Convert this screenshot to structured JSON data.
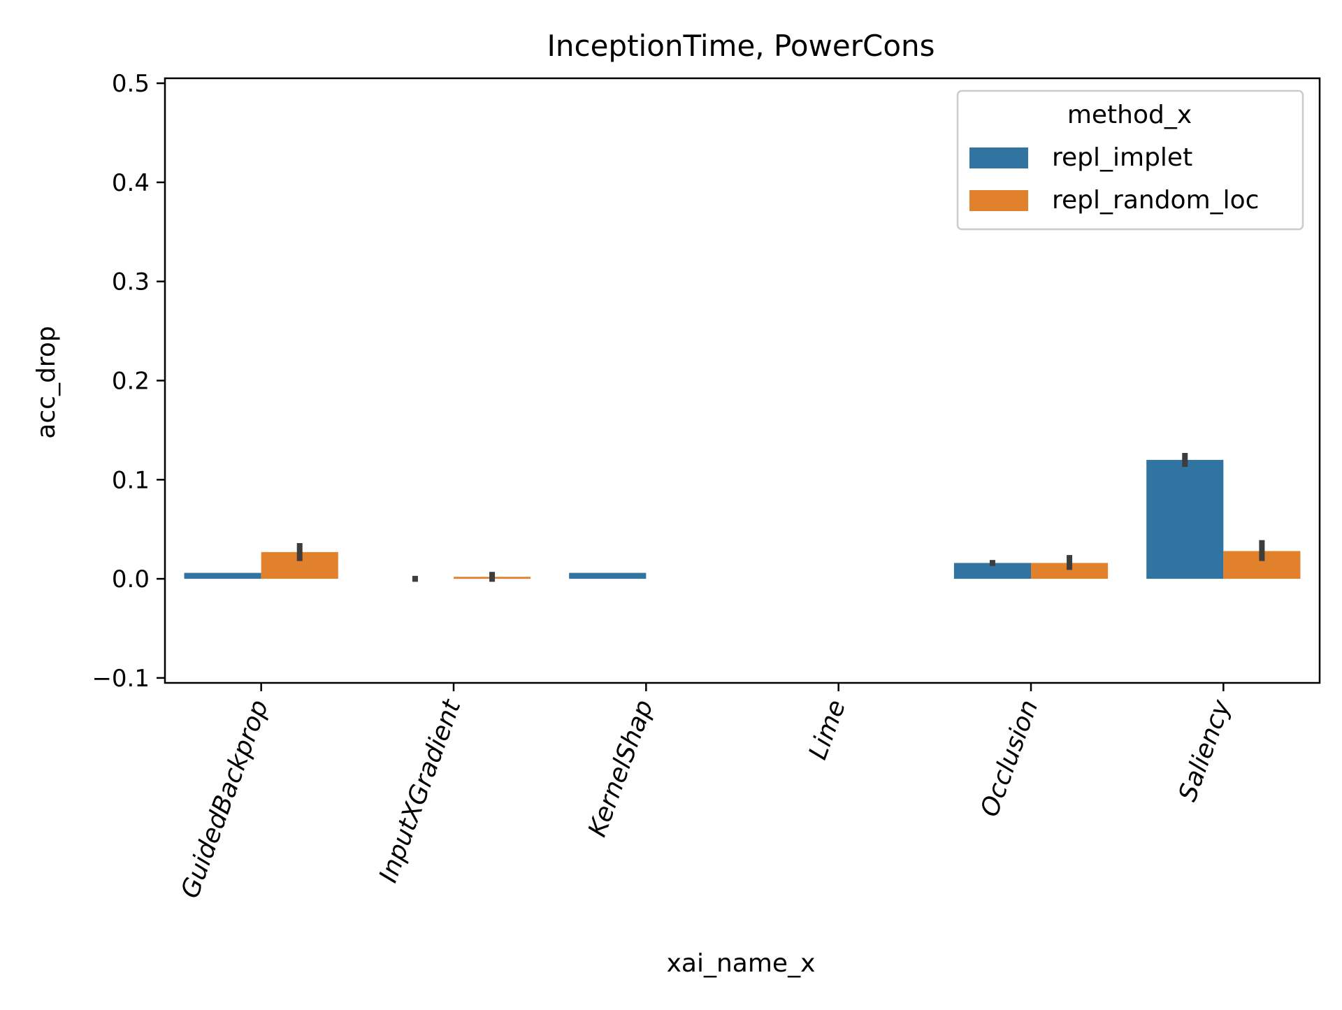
{
  "chart_data": {
    "type": "bar",
    "title": "InceptionTime, PowerCons",
    "xlabel": "xai_name_x",
    "ylabel": "acc_drop",
    "categories": [
      "GuidedBackprop",
      "InputXGradient",
      "KernelShap",
      "Lime",
      "Occlusion",
      "Saliency"
    ],
    "series": [
      {
        "name": "repl_implet",
        "color": "#3274a1",
        "values": [
          0.006,
          0.0,
          0.006,
          0.0,
          0.016,
          0.12
        ],
        "ci": [
          [
            0.006,
            0.006
          ],
          [
            -0.003,
            0.003
          ],
          [
            0.006,
            0.006
          ],
          [
            0.0,
            0.0
          ],
          [
            0.013,
            0.019
          ],
          [
            0.113,
            0.127
          ]
        ]
      },
      {
        "name": "repl_random_loc",
        "color": "#e1812c",
        "values": [
          0.027,
          0.002,
          0.0,
          0.0,
          0.016,
          0.028
        ],
        "ci": [
          [
            0.018,
            0.036
          ],
          [
            -0.003,
            0.007
          ],
          [
            0.0,
            0.0
          ],
          [
            0.0,
            0.0
          ],
          [
            0.009,
            0.024
          ],
          [
            0.018,
            0.039
          ]
        ]
      }
    ],
    "yticks": [
      -0.1,
      0.0,
      0.1,
      0.2,
      0.3,
      0.4,
      0.5
    ],
    "ytick_labels": [
      "−0.1",
      "0.0",
      "0.1",
      "0.2",
      "0.3",
      "0.4",
      "0.5"
    ],
    "ylim": [
      -0.105,
      0.505
    ],
    "legend": {
      "title": "method_x",
      "position": "top-right"
    },
    "grid": false
  }
}
